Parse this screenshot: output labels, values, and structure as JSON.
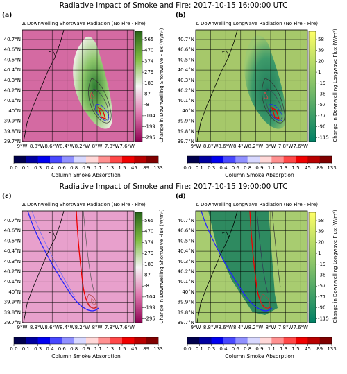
{
  "rows": [
    {
      "title": "Radiative Impact of Smoke and Fire: 2017-10-15 16:00:00 UTC",
      "panels": [
        {
          "label": "(a)",
          "title": "Δ Downwelling Shortwave Radiation (No Fire - Fire)",
          "colorbar_label": "Change in Downwelling Shortwave Flux (W/m²)",
          "colorbar_ticks": [
            "565",
            "470",
            "374",
            "279",
            "183",
            "87",
            "-8",
            "-104",
            "-199",
            "-295"
          ]
        },
        {
          "label": "(b)",
          "title": "Δ Downwelling Longwave Radiation (No Fire - Fire)",
          "colorbar_label": "Change in Downwelling Longwave Flux (W/m²)",
          "colorbar_ticks": [
            "58",
            "39",
            "20",
            "1",
            "-19",
            "-38",
            "-57",
            "-77",
            "-96",
            "-115"
          ]
        }
      ]
    },
    {
      "title": "Radiative Impact of Smoke and Fire: 2017-10-15 19:00:00 UTC",
      "panels": [
        {
          "label": "(c)",
          "title": "Δ Downwelling Shortwave Radiation (No Fire - Fire)",
          "colorbar_label": "Change in Downwelling Shortwave Flux (W/m²)",
          "colorbar_ticks": [
            "565",
            "470",
            "374",
            "279",
            "183",
            "87",
            "-8",
            "-104",
            "-199",
            "-295"
          ]
        },
        {
          "label": "(d)",
          "title": "Δ Downwelling Longwave Radiation (No Fire - Fire)",
          "colorbar_label": "Change in Downwelling Longwave Flux (W/m²)",
          "colorbar_ticks": [
            "58",
            "39",
            "20",
            "1",
            "-19",
            "-38",
            "-57",
            "-77",
            "-96",
            "-115"
          ]
        }
      ]
    }
  ],
  "lat_ticks": [
    "40.7°N",
    "40.6°N",
    "40.5°N",
    "40.4°N",
    "40.3°N",
    "40.2°N",
    "40.1°N",
    "40°N",
    "39.9°N",
    "39.8°N",
    "39.7°N"
  ],
  "lon_ticks": [
    "9°W",
    "8.8°W",
    "8.6°W",
    "8.4°W",
    "8.2°W",
    "8°W",
    "7.8°W",
    "7.6°W"
  ],
  "absorption_ticks": [
    "0.0",
    "0.1",
    "0.3",
    "0.4",
    "0.6",
    "0.8",
    "0.9",
    "1.1",
    "1.3",
    "1.5",
    "45",
    "89",
    "133"
  ],
  "absorption_label": "Column Smoke Absorption"
}
